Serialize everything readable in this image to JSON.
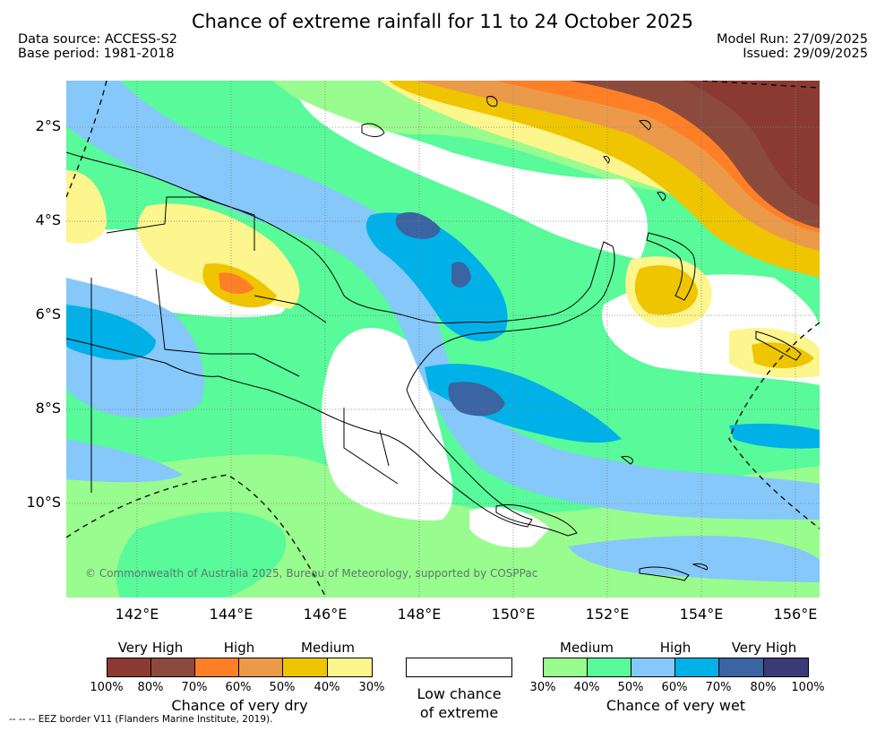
{
  "header": {
    "title": "Chance of extreme rainfall for 11 to 24 October 2025",
    "data_source": "Data source: ACCESS-S2",
    "base_period": "Base period: 1981-2018",
    "model_run": "Model Run: 27/09/2025",
    "issued": "Issued: 29/09/2025"
  },
  "map": {
    "lat_ticks": [
      "2°S",
      "4°S",
      "6°S",
      "8°S",
      "10°S"
    ],
    "lon_ticks": [
      "142°E",
      "144°E",
      "146°E",
      "148°E",
      "150°E",
      "152°E",
      "154°E",
      "156°E"
    ],
    "copyright": "© Commonwealth of Australia 2025, Bureau of Meteorology, supported by COSPPac"
  },
  "legend": {
    "dry": {
      "headings": [
        "Very High",
        "High",
        "Medium"
      ],
      "colors": [
        "#8b3a32",
        "#8b4a3c",
        "#ff7f27",
        "#eb9a4a",
        "#eec500",
        "#fdf58d"
      ],
      "ticks": [
        "100%",
        "80%",
        "70%",
        "60%",
        "50%",
        "40%",
        "30%"
      ],
      "title": "Chance of very dry"
    },
    "low": {
      "color": "#ffffff",
      "title_line1": "Low chance",
      "title_line2": "of extreme"
    },
    "wet": {
      "headings": [
        "Medium",
        "High",
        "Very High"
      ],
      "colors": [
        "#99fc8e",
        "#58fa9a",
        "#86c8fa",
        "#00b1e8",
        "#3a64a2",
        "#3a3a78"
      ],
      "ticks": [
        "30%",
        "40%",
        "50%",
        "60%",
        "70%",
        "80%",
        "100%"
      ],
      "title": "Chance of very wet"
    }
  },
  "footer": {
    "eez_note": "--  --  -- EEZ border V11 (Flanders Marine Institute, 2019)."
  }
}
